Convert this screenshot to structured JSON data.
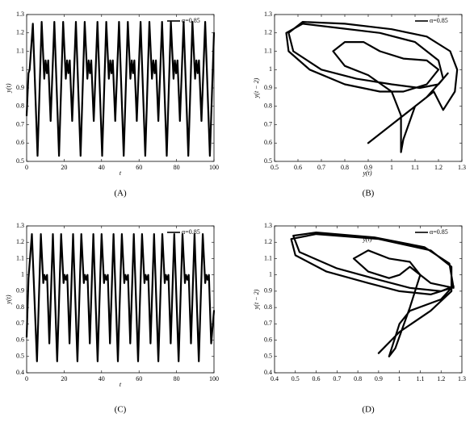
{
  "chart_data": [
    {
      "type": "line",
      "label": "(A)",
      "xlabel": "t",
      "ylabel": "y(t)",
      "xlim": [
        0,
        100
      ],
      "xticks": [
        0,
        20,
        40,
        60,
        80,
        100
      ],
      "ylim": [
        0.5,
        1.3
      ],
      "yticks": [
        0.5,
        0.6,
        0.7,
        0.8,
        0.9,
        1,
        1.1,
        1.2,
        1.3
      ],
      "x": [
        0,
        1,
        1.6,
        3.3,
        5.8,
        8.0,
        9.4,
        10.1,
        10.8,
        11.5,
        12.8,
        14.8,
        17.3,
        19.5,
        20.9,
        21.6,
        22.3,
        23.0,
        24.3,
        26.3,
        28.8,
        31.0,
        32.4,
        33.1,
        33.8,
        34.5,
        35.8,
        37.8,
        40.3,
        42.5,
        43.9,
        44.6,
        45.3,
        46.0,
        47.3,
        49.3,
        51.8,
        54.0,
        55.4,
        56.1,
        56.8,
        57.5,
        58.8,
        60.8,
        63.3,
        65.5,
        66.9,
        67.6,
        68.3,
        69.0,
        70.3,
        72.3,
        74.8,
        77.0,
        78.4,
        79.1,
        79.8,
        80.5,
        81.8,
        83.8,
        86.3,
        88.5,
        89.9,
        90.6,
        91.3,
        92.0,
        93.3,
        95.3,
        97.8,
        100
      ],
      "series": [
        {
          "name": "α=0.85",
          "color": "#000000",
          "values": [
            0.75,
            0.98,
            1.0,
            1.25,
            0.53,
            1.26,
            0.95,
            1.05,
            0.98,
            1.05,
            0.72,
            1.26,
            0.53,
            1.26,
            0.95,
            1.05,
            0.98,
            1.05,
            0.72,
            1.26,
            0.53,
            1.26,
            0.95,
            1.05,
            0.98,
            1.05,
            0.72,
            1.26,
            0.53,
            1.26,
            0.95,
            1.05,
            0.98,
            1.05,
            0.72,
            1.26,
            0.53,
            1.26,
            0.95,
            1.05,
            0.98,
            1.05,
            0.72,
            1.26,
            0.53,
            1.26,
            0.95,
            1.05,
            0.98,
            1.05,
            0.72,
            1.26,
            0.53,
            1.26,
            0.95,
            1.05,
            0.98,
            1.05,
            0.72,
            1.26,
            0.53,
            1.26,
            0.95,
            1.05,
            0.98,
            1.05,
            0.72,
            1.26,
            0.53,
            1.2
          ]
        }
      ]
    },
    {
      "type": "line",
      "label": "(B)",
      "xlabel": "y(t)",
      "ylabel": "y(t − 2)",
      "xlim": [
        0.5,
        1.3
      ],
      "xticks": [
        0.5,
        0.6,
        0.7,
        0.8,
        0.9,
        1,
        1.1,
        1.2,
        1.3
      ],
      "ylim": [
        0.5,
        1.3
      ],
      "yticks": [
        0.5,
        0.6,
        0.7,
        0.8,
        0.9,
        1,
        1.1,
        1.2,
        1.3
      ],
      "x": [
        0.9,
        1.0,
        1.15,
        1.22,
        1.2,
        1.1,
        0.95,
        0.75,
        0.62,
        0.55,
        0.56,
        0.65,
        0.8,
        0.95,
        1.05,
        1.15,
        1.2,
        1.15,
        1.05,
        0.95,
        0.88,
        0.8,
        0.75,
        0.8,
        0.9,
        1.0,
        1.04,
        1.04,
        1.05,
        1.1,
        1.18,
        1.22,
        1.27,
        1.28,
        1.25,
        1.15,
        1.0,
        0.8,
        0.62,
        0.56,
        0.58,
        0.7,
        0.85,
        1.0,
        1.12,
        1.2,
        1.24
      ],
      "series": [
        {
          "name": "α=0.85",
          "color": "#000000",
          "values": [
            0.6,
            0.7,
            0.85,
            0.95,
            1.05,
            1.15,
            1.2,
            1.23,
            1.25,
            1.2,
            1.1,
            1.0,
            0.92,
            0.88,
            0.88,
            0.92,
            1.0,
            1.05,
            1.06,
            1.1,
            1.15,
            1.15,
            1.1,
            1.02,
            0.97,
            0.88,
            0.75,
            0.55,
            0.62,
            0.8,
            0.88,
            0.78,
            0.88,
            1.0,
            1.1,
            1.18,
            1.22,
            1.25,
            1.26,
            1.2,
            1.1,
            1.0,
            0.95,
            0.92,
            0.9,
            0.92,
            0.98
          ]
        }
      ]
    },
    {
      "type": "line",
      "label": "(C)",
      "xlabel": "t",
      "ylabel": "y(t)",
      "xlim": [
        0,
        100
      ],
      "xticks": [
        0,
        20,
        40,
        60,
        80,
        100
      ],
      "ylim": [
        0.4,
        1.3
      ],
      "yticks": [
        0.4,
        0.5,
        0.6,
        0.7,
        0.8,
        0.9,
        1,
        1.1,
        1.2,
        1.3
      ],
      "x": [
        0,
        1,
        2.8,
        5.5,
        7.6,
        8.9,
        9.5,
        10.2,
        10.9,
        12.1,
        14.0,
        16.3,
        18.4,
        19.7,
        20.3,
        21.0,
        21.7,
        22.9,
        24.8,
        27.1,
        29.2,
        30.5,
        31.1,
        31.8,
        32.5,
        33.7,
        35.6,
        37.9,
        40.0,
        41.3,
        41.9,
        42.6,
        43.3,
        44.5,
        46.4,
        48.7,
        50.8,
        52.1,
        52.7,
        53.4,
        54.1,
        55.3,
        57.2,
        59.5,
        61.6,
        62.9,
        63.5,
        64.2,
        64.9,
        66.1,
        68.0,
        70.3,
        72.4,
        73.7,
        74.3,
        75.0,
        75.7,
        76.9,
        78.8,
        81.1,
        83.2,
        84.5,
        85.1,
        85.8,
        86.5,
        87.7,
        89.6,
        91.9,
        94.0,
        95.3,
        95.9,
        96.6,
        97.3,
        98.5,
        100
      ],
      "series": [
        {
          "name": "α=0.85",
          "color": "#000000",
          "values": [
            0.62,
            0.98,
            1.25,
            0.47,
            1.25,
            0.95,
            1.0,
            0.97,
            1.0,
            0.58,
            1.25,
            0.47,
            1.25,
            0.95,
            1.0,
            0.97,
            1.0,
            0.58,
            1.25,
            0.47,
            1.25,
            0.95,
            1.0,
            0.97,
            1.0,
            0.58,
            1.25,
            0.47,
            1.25,
            0.95,
            1.0,
            0.97,
            1.0,
            0.58,
            1.25,
            0.47,
            1.25,
            0.95,
            1.0,
            0.97,
            1.0,
            0.58,
            1.25,
            0.47,
            1.25,
            0.95,
            1.0,
            0.97,
            1.0,
            0.58,
            1.25,
            0.47,
            1.25,
            0.95,
            1.0,
            0.97,
            1.0,
            0.58,
            1.25,
            0.47,
            1.25,
            0.95,
            1.0,
            0.97,
            1.0,
            0.58,
            1.25,
            0.47,
            1.25,
            0.95,
            1.0,
            0.97,
            1.0,
            0.58,
            0.78
          ]
        }
      ]
    },
    {
      "type": "line",
      "label": "(D)",
      "xlabel": "y(t)",
      "ylabel": "y(t − 2)",
      "xlim": [
        0.4,
        1.3
      ],
      "xticks": [
        0.4,
        0.5,
        0.6,
        0.7,
        0.8,
        0.9,
        1,
        1.1,
        1.2,
        1.3
      ],
      "ylim": [
        0.4,
        1.3
      ],
      "yticks": [
        0.4,
        0.5,
        0.6,
        0.7,
        0.8,
        0.9,
        1,
        1.1,
        1.2,
        1.3
      ],
      "x": [
        0.9,
        1.0,
        1.15,
        1.25,
        1.25,
        1.15,
        0.9,
        0.6,
        0.48,
        0.5,
        0.65,
        0.85,
        1.0,
        1.15,
        1.25,
        1.2,
        1.05,
        1.0,
        0.95,
        0.98,
        1.05,
        1.1,
        1.05,
        0.95,
        0.85,
        0.78,
        0.85,
        0.95,
        1.0,
        1.05,
        1.15,
        1.26,
        1.24,
        1.12,
        0.88,
        0.6,
        0.49,
        0.52,
        0.7,
        0.9,
        1.05,
        1.2,
        1.26
      ],
      "series": [
        {
          "name": "α=0.85",
          "color": "#000000",
          "values": [
            0.52,
            0.65,
            0.78,
            0.9,
            1.05,
            1.15,
            1.22,
            1.25,
            1.22,
            1.12,
            1.02,
            0.95,
            0.9,
            0.88,
            0.92,
            0.85,
            0.78,
            0.7,
            0.5,
            0.55,
            0.8,
            1.0,
            1.08,
            1.1,
            1.15,
            1.1,
            1.02,
            0.98,
            1.0,
            1.05,
            0.95,
            0.92,
            1.07,
            1.17,
            1.23,
            1.26,
            1.24,
            1.14,
            1.04,
            0.97,
            0.92,
            0.9,
            0.93
          ]
        }
      ]
    }
  ]
}
